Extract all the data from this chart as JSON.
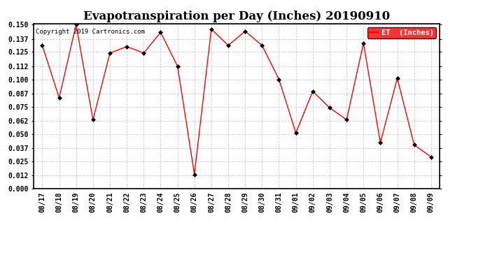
{
  "title": "Evapotranspiration per Day (Inches) 20190910",
  "copyright_text": "Copyright 2019 Cartronics.com",
  "legend_label": "ET  (Inches)",
  "legend_bg": "#ff0000",
  "legend_text_color": "#ffffff",
  "line_color": "#ff0000",
  "marker_color": "#000000",
  "background_color": "#ffffff",
  "grid_color": "#cccccc",
  "border_color": "#000000",
  "labels": [
    "08/17",
    "08/18",
    "08/19",
    "08/20",
    "08/21",
    "08/22",
    "08/23",
    "08/24",
    "08/25",
    "08/26",
    "08/27",
    "08/28",
    "08/29",
    "08/30",
    "08/31",
    "09/01",
    "09/02",
    "09/03",
    "09/04",
    "09/05",
    "09/06",
    "09/07",
    "09/08",
    "09/09"
  ],
  "values": [
    0.131,
    0.083,
    0.15,
    0.063,
    0.124,
    0.13,
    0.124,
    0.143,
    0.112,
    0.013,
    0.146,
    0.131,
    0.144,
    0.131,
    0.1,
    0.051,
    0.089,
    0.074,
    0.063,
    0.133,
    0.042,
    0.101,
    0.04,
    0.029
  ],
  "ylim": [
    0.0,
    0.15
  ],
  "yticks": [
    0.0,
    0.012,
    0.025,
    0.037,
    0.05,
    0.062,
    0.075,
    0.087,
    0.1,
    0.112,
    0.125,
    0.137,
    0.15
  ],
  "title_fontsize": 12,
  "tick_fontsize": 7,
  "copyright_fontsize": 6.5,
  "legend_fontsize": 7.5
}
